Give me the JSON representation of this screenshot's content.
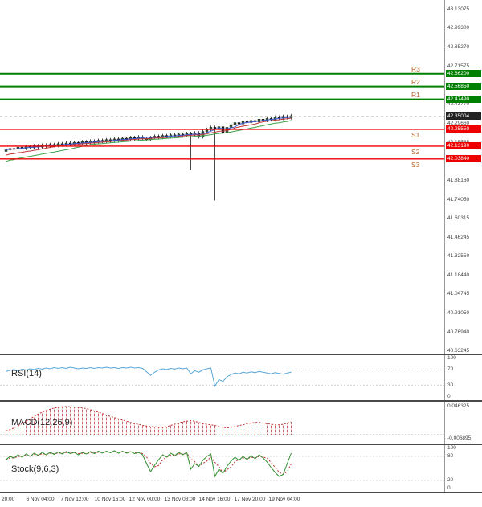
{
  "colors": {
    "resistance": "#008000",
    "support": "#ee0000",
    "current_badge": "#222222",
    "level_tag": "#b4632d",
    "rsi_line": "#58a6d8",
    "macd_line": "#c03030",
    "stoch_k": "#2f8f2f",
    "stoch_d": "#c03030",
    "ma_fast": "#3b5bd6",
    "ma_mid": "#c03a3a",
    "ma_slow": "#3fa24a",
    "candle_up": "#355e35",
    "candle_down": "#1a1a1a",
    "separator": "#4a4a4a"
  },
  "time_axis": {
    "labels": [
      "20:00",
      "6 Nov 04:00",
      "7 Nov 12:00",
      "10 Nov 16:00",
      "12 Nov 00:00",
      "13 Nov 08:00",
      "14 Nov 16:00",
      "17 Nov 20:00",
      "19 Nov 04:00"
    ]
  },
  "chart_data": [
    {
      "id": "price",
      "type": "candlestick",
      "title": "",
      "ylim": [
        40.63245,
        43.13075
      ],
      "y_ticks": [
        "43.13075",
        "42.99300",
        "42.85270",
        "42.71575",
        "42.43770",
        "42.29660",
        "42.15565",
        "42.01855",
        "41.88160",
        "41.74050",
        "41.60315",
        "41.46245",
        "41.32550",
        "41.18440",
        "41.04745",
        "40.91050",
        "40.76940",
        "40.63245"
      ],
      "closes": [
        42.105,
        42.115,
        42.11,
        42.125,
        42.115,
        42.13,
        42.12,
        42.135,
        42.125,
        42.14,
        42.13,
        42.145,
        42.135,
        42.15,
        42.14,
        42.155,
        42.145,
        42.16,
        42.15,
        42.165,
        42.155,
        42.17,
        42.16,
        42.175,
        42.165,
        42.18,
        42.17,
        42.185,
        42.175,
        42.19,
        42.18,
        42.195,
        42.185,
        42.2,
        42.19,
        42.18,
        42.195,
        42.205,
        42.195,
        42.21,
        42.2,
        42.215,
        42.205,
        42.22,
        42.21,
        42.225,
        42.215,
        42.23,
        42.2,
        42.24,
        42.255,
        42.27,
        42.26,
        42.275,
        42.23,
        42.27,
        42.29,
        42.305,
        42.295,
        42.315,
        42.305,
        42.32,
        42.31,
        42.33,
        42.32,
        42.335,
        42.325,
        42.345,
        42.335,
        42.35,
        42.34,
        42.355
      ],
      "spike_lows": {
        "46": 41.955,
        "52": 41.735
      },
      "current_price": {
        "value": 42.35004,
        "display": "42.35004"
      },
      "levels": [
        {
          "name": "R3",
          "value": 42.662,
          "display": "42.66200",
          "type": "resistance"
        },
        {
          "name": "R2",
          "value": 42.5685,
          "display": "42.56850",
          "type": "resistance"
        },
        {
          "name": "R1",
          "value": 42.4749,
          "display": "42.47490",
          "type": "resistance"
        },
        {
          "name": "S1",
          "value": 42.2555,
          "display": "42.25550",
          "type": "support"
        },
        {
          "name": "S2",
          "value": 42.1319,
          "display": "42.13190",
          "type": "support"
        },
        {
          "name": "S3",
          "value": 42.0384,
          "display": "42.03840",
          "type": "support"
        }
      ]
    },
    {
      "id": "rsi",
      "type": "line",
      "label": "RSI(14)",
      "ylim": [
        0,
        100
      ],
      "y_ticks": [
        "100",
        "70",
        "30",
        "0"
      ],
      "level_lines": [
        70,
        30
      ],
      "values": [
        66,
        69,
        71,
        68,
        72,
        70,
        73,
        71,
        74,
        72,
        75,
        73,
        76,
        74,
        76,
        74,
        77,
        75,
        73,
        75,
        74,
        76,
        74,
        76,
        75,
        77,
        75,
        76,
        74,
        76,
        75,
        77,
        75,
        76,
        74,
        65,
        56,
        64,
        70,
        73,
        71,
        74,
        72,
        75,
        73,
        75,
        60,
        68,
        64,
        70,
        73,
        75,
        28,
        45,
        40,
        52,
        58,
        62,
        60,
        64,
        62,
        65,
        63,
        66,
        64,
        62,
        60,
        63,
        61,
        59,
        62,
        64
      ]
    },
    {
      "id": "macd",
      "type": "bar",
      "label": "MACD(12,26,9)",
      "ylim": [
        -0.006895,
        0.046325
      ],
      "y_ticks": [
        "0.046325",
        "-0.006895"
      ],
      "values": [
        0.006,
        0.008,
        0.011,
        0.014,
        0.018,
        0.022,
        0.026,
        0.03,
        0.034,
        0.037,
        0.04,
        0.042,
        0.044,
        0.045,
        0.046,
        0.0463,
        0.046,
        0.0455,
        0.045,
        0.044,
        0.043,
        0.041,
        0.039,
        0.037,
        0.035,
        0.032,
        0.03,
        0.028,
        0.026,
        0.024,
        0.022,
        0.02,
        0.018,
        0.017,
        0.015,
        0.014,
        0.013,
        0.013,
        0.012,
        0.012,
        0.013,
        0.015,
        0.017,
        0.019,
        0.021,
        0.022,
        0.023,
        0.022,
        0.02,
        0.018,
        0.017,
        0.016,
        0.015,
        0.013,
        0.012,
        0.011,
        0.012,
        0.013,
        0.015,
        0.016,
        0.018,
        0.019,
        0.02,
        0.02,
        0.019,
        0.018,
        0.017,
        0.016,
        0.016,
        0.017,
        0.019,
        0.021
      ]
    },
    {
      "id": "stoch",
      "type": "line",
      "label": "Stock(9,6,3)",
      "ylim": [
        0,
        100
      ],
      "y_ticks": [
        "100",
        "80",
        "20",
        "0"
      ],
      "level_lines": [
        80,
        20
      ],
      "k_values": [
        72,
        80,
        76,
        84,
        78,
        86,
        80,
        88,
        82,
        90,
        84,
        90,
        85,
        91,
        86,
        92,
        87,
        90,
        84,
        90,
        86,
        92,
        87,
        93,
        88,
        93,
        89,
        94,
        88,
        93,
        88,
        92,
        87,
        90,
        84,
        62,
        42,
        58,
        72,
        84,
        78,
        88,
        82,
        90,
        84,
        90,
        48,
        62,
        55,
        70,
        80,
        86,
        30,
        48,
        38,
        55,
        68,
        78,
        70,
        80,
        72,
        82,
        74,
        84,
        76,
        66,
        52,
        40,
        30,
        35,
        62,
        88
      ]
    }
  ]
}
